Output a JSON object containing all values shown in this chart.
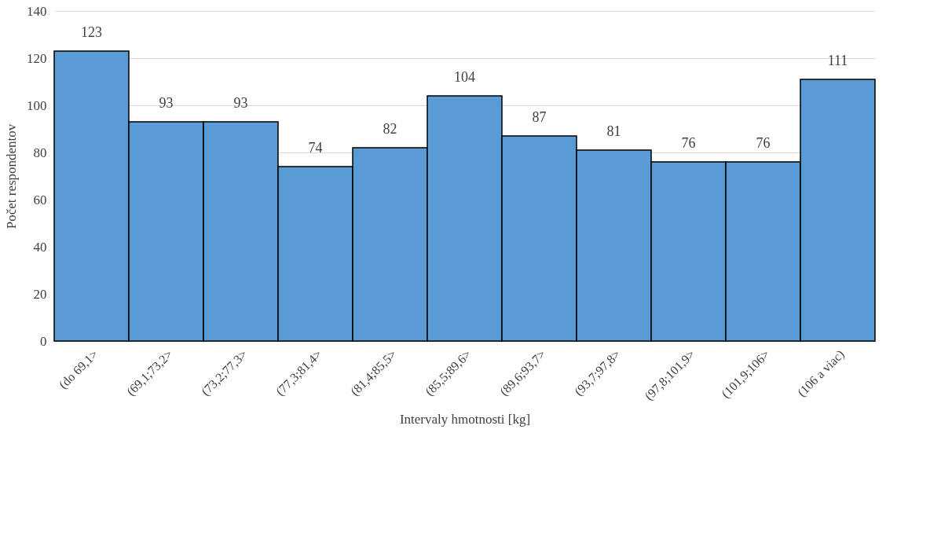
{
  "chart_data": {
    "type": "bar",
    "categories": [
      "(do 69,1>",
      "(69,1;73,2>",
      "(73,2;77,3>",
      "(77,3;81,4>",
      "(81,4;85,5>",
      "(85,5;89,6>",
      "(89,6;93,7>",
      "(93,7;97,8>",
      "(97,8;101,9>",
      "(101,9;106>",
      "(106 a viac)"
    ],
    "values": [
      123,
      93,
      93,
      74,
      82,
      104,
      87,
      81,
      76,
      76,
      111
    ],
    "color": "#5b9bd5",
    "xlabel": "Intervaly hmotnosti [kg]",
    "ylabel": "Počet respondentov",
    "ylim": [
      0,
      140
    ],
    "yticks": [
      0,
      20,
      40,
      60,
      80,
      100,
      120,
      140
    ],
    "grid": "y",
    "data_labels": true
  }
}
